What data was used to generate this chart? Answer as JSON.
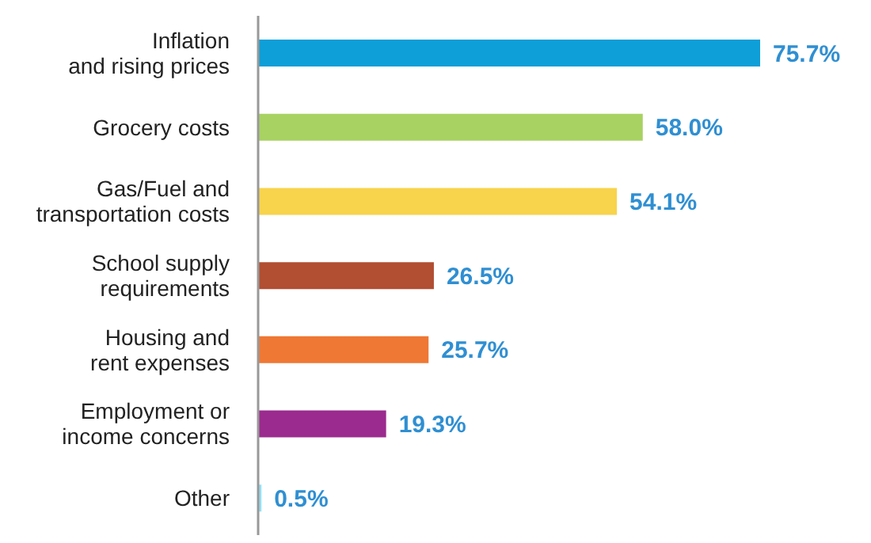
{
  "chart_data": {
    "type": "bar",
    "orientation": "horizontal",
    "categories": [
      "Inflation\nand rising prices",
      "Grocery costs",
      "Gas/Fuel and\ntransportation costs",
      "School supply\nrequirements",
      "Housing and\nrent expenses",
      "Employment or\nincome concerns",
      "Other"
    ],
    "values": [
      75.7,
      58.0,
      54.1,
      26.5,
      25.7,
      19.3,
      0.5
    ],
    "value_labels": [
      "75.7%",
      "58.0%",
      "54.1%",
      "26.5%",
      "25.7%",
      "19.3%",
      "0.5%"
    ],
    "colors": [
      "#0e9fd8",
      "#a8d262",
      "#f8d44c",
      "#b24e32",
      "#ef7834",
      "#9b2b8e",
      "#93e0f5"
    ]
  }
}
